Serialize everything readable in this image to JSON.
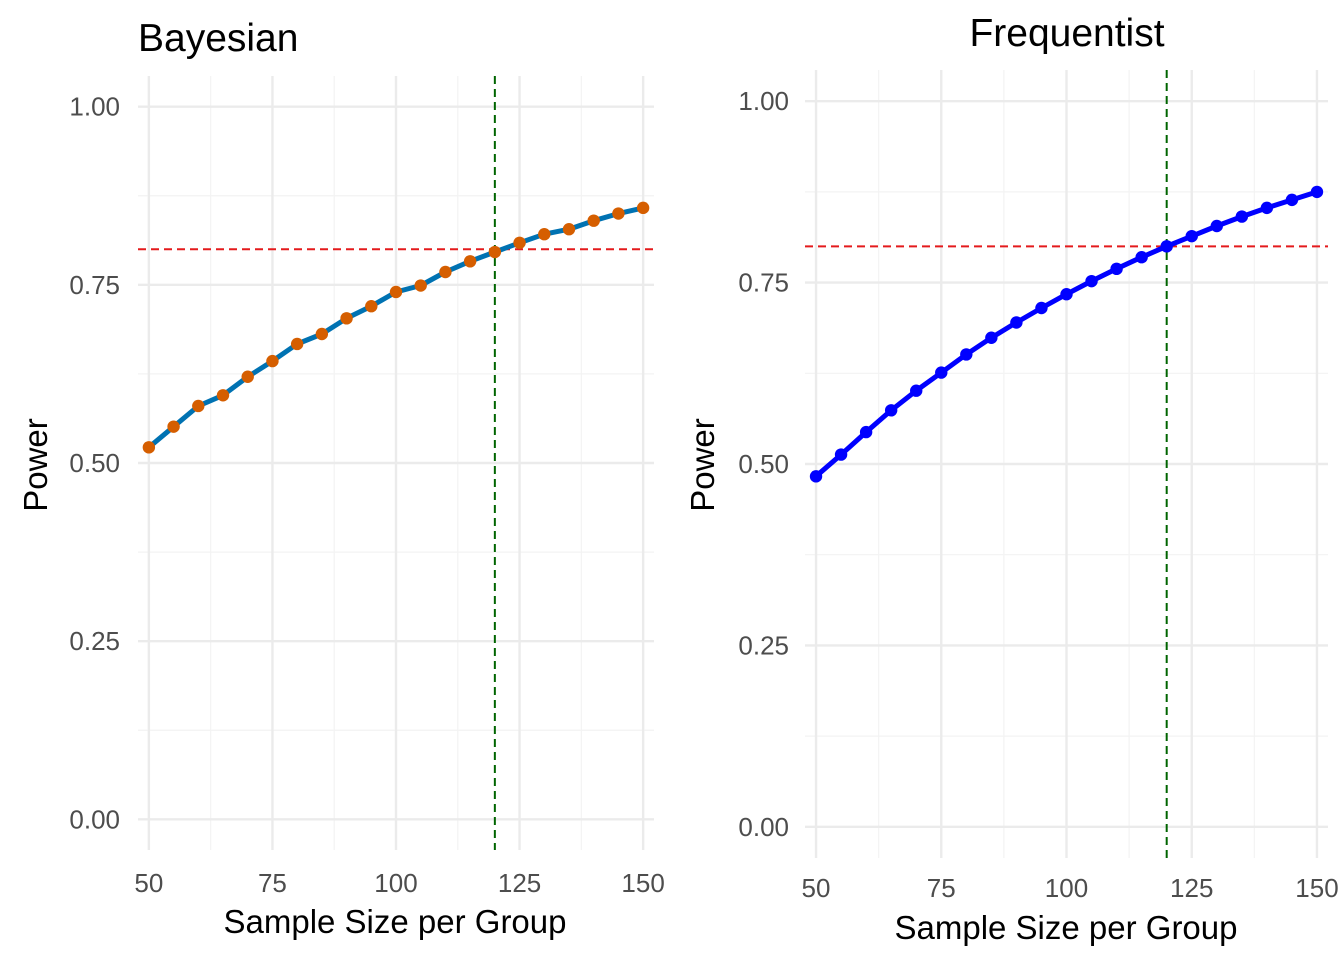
{
  "chart_data": [
    {
      "type": "line",
      "title": "Bayesian",
      "title_align": "left",
      "xlabel": "Sample Size per Group",
      "ylabel": "Power",
      "x": [
        50,
        55,
        60,
        65,
        70,
        75,
        80,
        85,
        90,
        95,
        100,
        105,
        110,
        115,
        120,
        125,
        130,
        135,
        140,
        145,
        150
      ],
      "series": [
        {
          "values": [
            0.522,
            0.551,
            0.58,
            0.595,
            0.621,
            0.643,
            0.667,
            0.681,
            0.703,
            0.72,
            0.74,
            0.749,
            0.768,
            0.783,
            0.796,
            0.809,
            0.821,
            0.828,
            0.84,
            0.85,
            0.858
          ],
          "line_color": "#0072b2",
          "point_color": "#d55e00"
        }
      ],
      "xlim": [
        47.8,
        152.2
      ],
      "ylim": [
        -0.043,
        1.043
      ],
      "xticks": [
        "50",
        "75",
        "100",
        "125",
        "150"
      ],
      "xtick_values": [
        50,
        75,
        100,
        125,
        150
      ],
      "yticks": [
        "0.00",
        "0.25",
        "0.50",
        "0.75",
        "1.00"
      ],
      "ytick_values": [
        0,
        0.25,
        0.5,
        0.75,
        1
      ],
      "hline": {
        "y": 0.8,
        "color": "#e41a1c",
        "style": "dashed"
      },
      "vline": {
        "x": 120,
        "color": "#006400",
        "style": "dashed"
      },
      "grid": true
    },
    {
      "type": "line",
      "title": "Frequentist",
      "title_align": "center",
      "xlabel": "Sample Size per Group",
      "ylabel": "Power",
      "x": [
        50,
        55,
        60,
        65,
        70,
        75,
        80,
        85,
        90,
        95,
        100,
        105,
        110,
        115,
        120,
        125,
        130,
        135,
        140,
        145,
        150
      ],
      "series": [
        {
          "values": [
            0.483,
            0.513,
            0.544,
            0.574,
            0.601,
            0.626,
            0.651,
            0.674,
            0.695,
            0.715,
            0.734,
            0.752,
            0.769,
            0.785,
            0.8,
            0.814,
            0.828,
            0.841,
            0.853,
            0.864,
            0.875
          ],
          "line_color": "#0000ff",
          "point_color": "#0000ff"
        }
      ],
      "xlim": [
        47.8,
        152.2
      ],
      "ylim": [
        -0.043,
        1.043
      ],
      "xticks": [
        "50",
        "75",
        "100",
        "125",
        "150"
      ],
      "xtick_values": [
        50,
        75,
        100,
        125,
        150
      ],
      "yticks": [
        "0.00",
        "0.25",
        "0.50",
        "0.75",
        "1.00"
      ],
      "ytick_values": [
        0,
        0.25,
        0.5,
        0.75,
        1
      ],
      "hline": {
        "y": 0.8,
        "color": "#e41a1c",
        "style": "dashed"
      },
      "vline": {
        "x": 120,
        "color": "#006400",
        "style": "dashed"
      },
      "grid": true
    }
  ]
}
